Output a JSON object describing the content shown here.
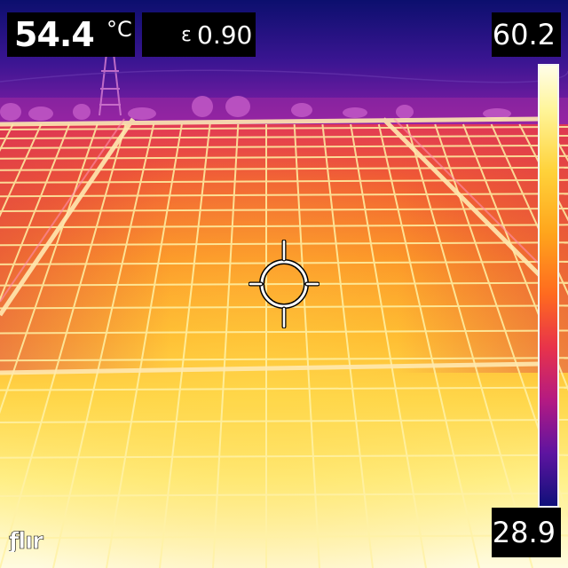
{
  "readout": {
    "spot_temperature": "54.4",
    "unit": "°C",
    "emissivity_label": "ε",
    "emissivity_value": "0.90"
  },
  "scale": {
    "max": "60.2",
    "min": "28.9"
  },
  "palette": {
    "hot": "#fffbe0",
    "warm": "#ffd23a",
    "mid": "#ff7a1e",
    "cool": "#b41a82",
    "cold": "#10107a"
  },
  "icons": {
    "crosshair": "spot-meter-crosshair-icon",
    "logo": "flir-logo"
  },
  "brand": "FLIR"
}
